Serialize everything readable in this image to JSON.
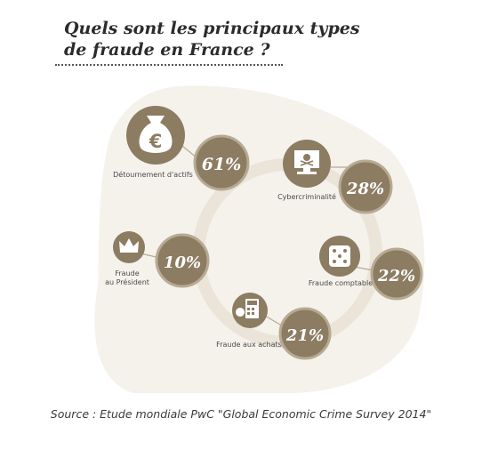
{
  "title_lines": [
    "Quels sont les principaux types",
    "de fraude en France ?"
  ],
  "source": "Source : Etude mondiale PwC \"Global Economic Crime Survey 2014\"",
  "colors": {
    "badge": "#8c7c62",
    "badge_ring": "#b7aa93",
    "text": "#4a4a4a",
    "background_shape": "#f5f2ec",
    "ring": "#ebe5d9"
  },
  "chart_data": {
    "type": "infographic",
    "unit": "%",
    "categories": [
      "Détournement d'actifs",
      "Cybercriminalité",
      "Fraude au Président",
      "Fraude comptable",
      "Fraude aux achats"
    ],
    "values": [
      61,
      28,
      10,
      22,
      21
    ],
    "items": [
      {
        "label_lines": [
          "Détournement d'actifs"
        ],
        "value": 61,
        "value_label": "61%",
        "icon": "money-bag-euro-icon"
      },
      {
        "label_lines": [
          "Cybercriminalité"
        ],
        "value": 28,
        "value_label": "28%",
        "icon": "computer-skull-icon"
      },
      {
        "label_lines": [
          "Fraude",
          "au Président"
        ],
        "value": 10,
        "value_label": "10%",
        "icon": "crown-icon"
      },
      {
        "label_lines": [
          "Fraude comptable"
        ],
        "value": 22,
        "value_label": "22%",
        "icon": "dice-icon"
      },
      {
        "label_lines": [
          "Fraude aux achats"
        ],
        "value": 21,
        "value_label": "21%",
        "icon": "calculator-money-icon"
      }
    ]
  }
}
